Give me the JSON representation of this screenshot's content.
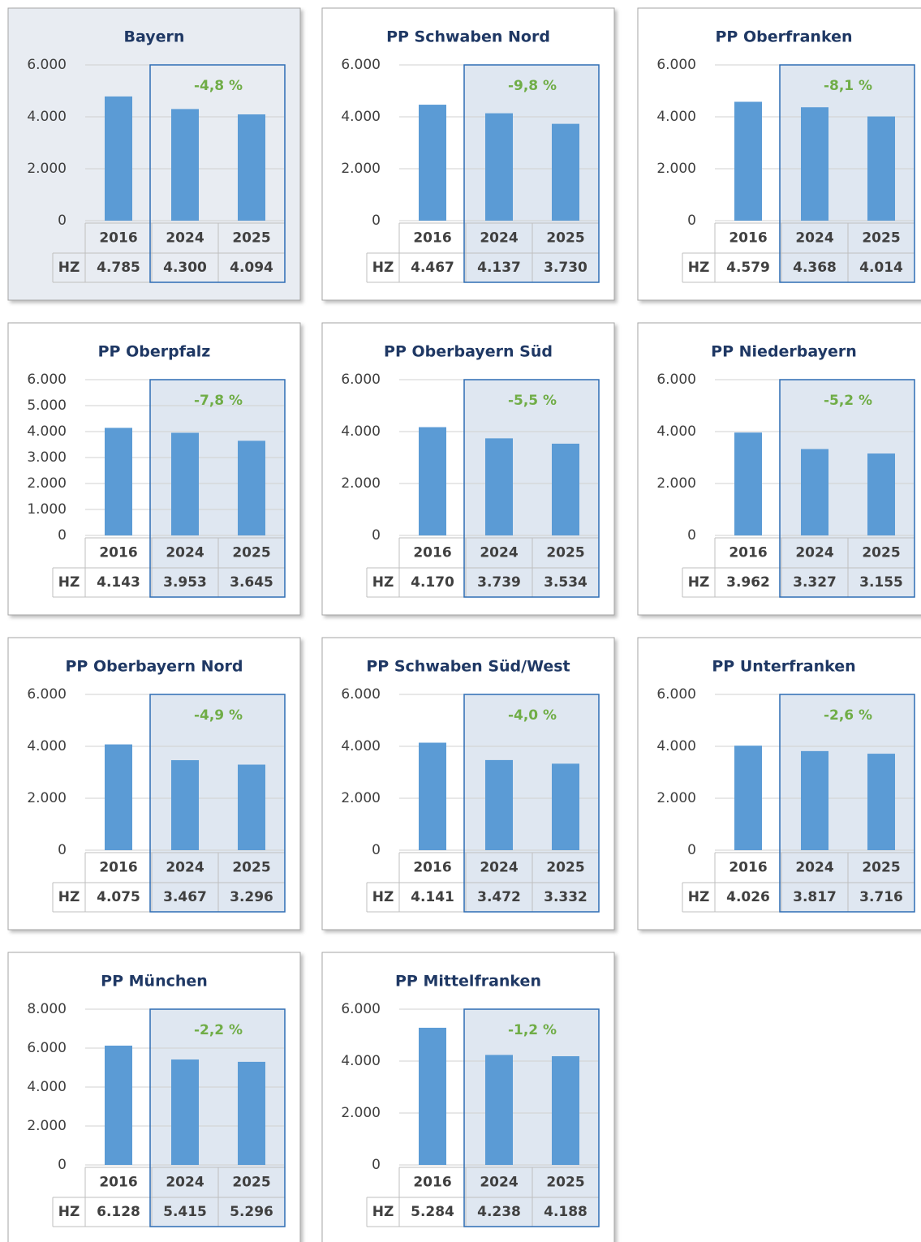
{
  "chart_data": [
    {
      "type": "bar",
      "title": "Bayern",
      "categories": [
        "2016",
        "2024",
        "2025"
      ],
      "row_label": "HZ",
      "values": [
        4785,
        4300,
        4094
      ],
      "value_labels": [
        "4.785",
        "4.300",
        "4.094"
      ],
      "annotation": "-4,8 %",
      "ylim": [
        0,
        6000
      ],
      "yticks": [
        0,
        {
          "value": 2000,
          "label": "2.000"
        },
        {
          "value": 4000,
          "label": "4.000"
        },
        {
          "value": 6000,
          "label": "6.000"
        }
      ],
      "color": "#5b9bd5",
      "background": "#e8ecf2",
      "grid": true
    },
    {
      "type": "bar",
      "title": "PP Schwaben Nord",
      "categories": [
        "2016",
        "2024",
        "2025"
      ],
      "row_label": "HZ",
      "values": [
        4467,
        4137,
        3730
      ],
      "value_labels": [
        "4.467",
        "4.137",
        "3.730"
      ],
      "annotation": "-9,8 %",
      "ylim": [
        0,
        6000
      ],
      "yticks": [
        0,
        {
          "value": 2000,
          "label": "2.000"
        },
        {
          "value": 4000,
          "label": "4.000"
        },
        {
          "value": 6000,
          "label": "6.000"
        }
      ],
      "color": "#5b9bd5",
      "background": "#ffffff",
      "grid": true
    },
    {
      "type": "bar",
      "title": "PP Oberfranken",
      "categories": [
        "2016",
        "2024",
        "2025"
      ],
      "row_label": "HZ",
      "values": [
        4579,
        4368,
        4014
      ],
      "value_labels": [
        "4.579",
        "4.368",
        "4.014"
      ],
      "annotation": "-8,1 %",
      "ylim": [
        0,
        6000
      ],
      "yticks": [
        0,
        {
          "value": 2000,
          "label": "2.000"
        },
        {
          "value": 4000,
          "label": "4.000"
        },
        {
          "value": 6000,
          "label": "6.000"
        }
      ],
      "color": "#5b9bd5",
      "background": "#ffffff",
      "grid": true
    },
    {
      "type": "bar",
      "title": "PP Oberpfalz",
      "categories": [
        "2016",
        "2024",
        "2025"
      ],
      "row_label": "HZ",
      "values": [
        4143,
        3953,
        3645
      ],
      "value_labels": [
        "4.143",
        "3.953",
        "3.645"
      ],
      "annotation": "-7,8 %",
      "ylim": [
        0,
        6000
      ],
      "yticks": [
        0,
        {
          "value": 1000,
          "label": "1.000"
        },
        {
          "value": 2000,
          "label": "2.000"
        },
        {
          "value": 3000,
          "label": "3.000"
        },
        {
          "value": 4000,
          "label": "4.000"
        },
        {
          "value": 5000,
          "label": "5.000"
        },
        {
          "value": 6000,
          "label": "6.000"
        }
      ],
      "color": "#5b9bd5",
      "background": "#ffffff",
      "grid": true
    },
    {
      "type": "bar",
      "title": "PP Oberbayern Süd",
      "categories": [
        "2016",
        "2024",
        "2025"
      ],
      "row_label": "HZ",
      "values": [
        4170,
        3739,
        3534
      ],
      "value_labels": [
        "4.170",
        "3.739",
        "3.534"
      ],
      "annotation": "-5,5 %",
      "ylim": [
        0,
        6000
      ],
      "yticks": [
        0,
        {
          "value": 2000,
          "label": "2.000"
        },
        {
          "value": 4000,
          "label": "4.000"
        },
        {
          "value": 6000,
          "label": "6.000"
        }
      ],
      "color": "#5b9bd5",
      "background": "#ffffff",
      "grid": true
    },
    {
      "type": "bar",
      "title": "PP Niederbayern",
      "categories": [
        "2016",
        "2024",
        "2025"
      ],
      "row_label": "HZ",
      "values": [
        3962,
        3327,
        3155
      ],
      "value_labels": [
        "3.962",
        "3.327",
        "3.155"
      ],
      "annotation": "-5,2 %",
      "ylim": [
        0,
        6000
      ],
      "yticks": [
        0,
        {
          "value": 2000,
          "label": "2.000"
        },
        {
          "value": 4000,
          "label": "4.000"
        },
        {
          "value": 6000,
          "label": "6.000"
        }
      ],
      "color": "#5b9bd5",
      "background": "#ffffff",
      "grid": true
    },
    {
      "type": "bar",
      "title": "PP Oberbayern Nord",
      "categories": [
        "2016",
        "2024",
        "2025"
      ],
      "row_label": "HZ",
      "values": [
        4075,
        3467,
        3296
      ],
      "value_labels": [
        "4.075",
        "3.467",
        "3.296"
      ],
      "annotation": "-4,9 %",
      "ylim": [
        0,
        6000
      ],
      "yticks": [
        0,
        {
          "value": 2000,
          "label": "2.000"
        },
        {
          "value": 4000,
          "label": "4.000"
        },
        {
          "value": 6000,
          "label": "6.000"
        }
      ],
      "color": "#5b9bd5",
      "background": "#ffffff",
      "grid": true
    },
    {
      "type": "bar",
      "title": "PP Schwaben Süd/West",
      "categories": [
        "2016",
        "2024",
        "2025"
      ],
      "row_label": "HZ",
      "values": [
        4141,
        3472,
        3332
      ],
      "value_labels": [
        "4.141",
        "3.472",
        "3.332"
      ],
      "annotation": "-4,0 %",
      "ylim": [
        0,
        6000
      ],
      "yticks": [
        0,
        {
          "value": 2000,
          "label": "2.000"
        },
        {
          "value": 4000,
          "label": "4.000"
        },
        {
          "value": 6000,
          "label": "6.000"
        }
      ],
      "color": "#5b9bd5",
      "background": "#ffffff",
      "grid": true
    },
    {
      "type": "bar",
      "title": "PP Unterfranken",
      "categories": [
        "2016",
        "2024",
        "2025"
      ],
      "row_label": "HZ",
      "values": [
        4026,
        3817,
        3716
      ],
      "value_labels": [
        "4.026",
        "3.817",
        "3.716"
      ],
      "annotation": "-2,6 %",
      "ylim": [
        0,
        6000
      ],
      "yticks": [
        0,
        {
          "value": 2000,
          "label": "2.000"
        },
        {
          "value": 4000,
          "label": "4.000"
        },
        {
          "value": 6000,
          "label": "6.000"
        }
      ],
      "color": "#5b9bd5",
      "background": "#ffffff",
      "grid": true
    },
    {
      "type": "bar",
      "title": "PP München",
      "categories": [
        "2016",
        "2024",
        "2025"
      ],
      "row_label": "HZ",
      "values": [
        6128,
        5415,
        5296
      ],
      "value_labels": [
        "6.128",
        "5.415",
        "5.296"
      ],
      "annotation": "-2,2 %",
      "ylim": [
        0,
        8000
      ],
      "yticks": [
        0,
        {
          "value": 2000,
          "label": "2.000"
        },
        {
          "value": 4000,
          "label": "4.000"
        },
        {
          "value": 6000,
          "label": "6.000"
        },
        {
          "value": 8000,
          "label": "8.000"
        }
      ],
      "color": "#5b9bd5",
      "background": "#ffffff",
      "grid": true
    },
    {
      "type": "bar",
      "title": "PP Mittelfranken",
      "categories": [
        "2016",
        "2024",
        "2025"
      ],
      "row_label": "HZ",
      "values": [
        5284,
        4238,
        4188
      ],
      "value_labels": [
        "5.284",
        "4.238",
        "4.188"
      ],
      "annotation": "-1,2 %",
      "ylim": [
        0,
        6000
      ],
      "yticks": [
        0,
        {
          "value": 2000,
          "label": "2.000"
        },
        {
          "value": 4000,
          "label": "4.000"
        },
        {
          "value": 6000,
          "label": "6.000"
        }
      ],
      "color": "#5b9bd5",
      "background": "#ffffff",
      "grid": true
    }
  ]
}
